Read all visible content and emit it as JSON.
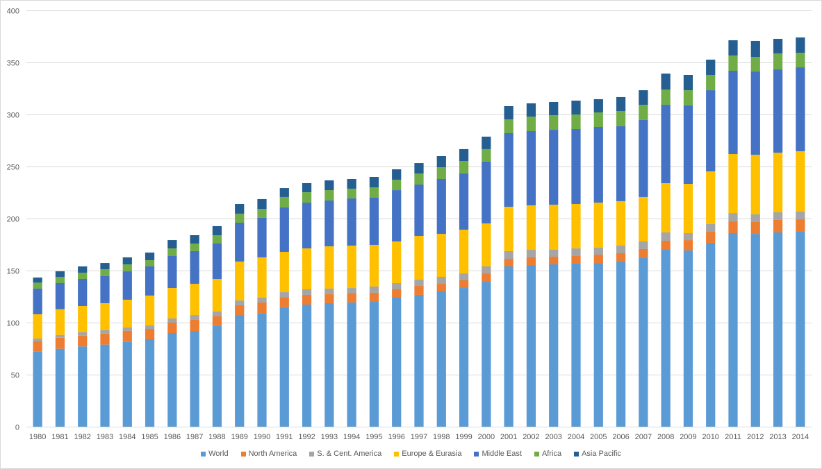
{
  "chart_data": {
    "type": "bar",
    "stacked": true,
    "title": "",
    "xlabel": "",
    "ylabel": "",
    "ylim": [
      0,
      400
    ],
    "yticks": [
      0,
      50,
      100,
      150,
      200,
      250,
      300,
      350,
      400
    ],
    "grid": true,
    "legend_position": "bottom",
    "categories": [
      "1980",
      "1981",
      "1982",
      "1983",
      "1984",
      "1985",
      "1986",
      "1987",
      "1988",
      "1989",
      "1990",
      "1991",
      "1992",
      "1993",
      "1994",
      "1995",
      "1996",
      "1997",
      "1998",
      "1999",
      "2000",
      "2001",
      "2002",
      "2003",
      "2004",
      "2005",
      "2006",
      "2007",
      "2008",
      "2009",
      "2010",
      "2011",
      "2012",
      "2013",
      "2014"
    ],
    "series": [
      {
        "name": "World",
        "color": "#5B9BD5",
        "values": [
          72.2,
          74.9,
          77.1,
          78.9,
          81.5,
          84,
          90,
          92,
          96.7,
          107.3,
          109.1,
          114.9,
          117.3,
          118.7,
          119.3,
          120,
          124,
          126.7,
          130,
          133.3,
          139.3,
          154,
          155.3,
          156,
          156.7,
          157.3,
          158.7,
          162,
          170,
          169.3,
          176.7,
          186,
          185.3,
          186.7,
          187.3
        ]
      },
      {
        "name": "North America",
        "color": "#ED7D31",
        "values": [
          9.8,
          10.6,
          10.4,
          10.6,
          10.7,
          10,
          10,
          10.7,
          9.3,
          9.4,
          10.2,
          9.1,
          9.4,
          8.6,
          8.7,
          8.7,
          8,
          8.6,
          7.3,
          7.4,
          8,
          7.3,
          7.4,
          7.3,
          7.3,
          8,
          8,
          8.7,
          8.7,
          10,
          10.6,
          11.3,
          11.4,
          12,
          12
        ]
      },
      {
        "name": "S. & Cent. America",
        "color": "#A5A5A5",
        "values": [
          2.7,
          2.7,
          3.4,
          3.2,
          3.1,
          3.3,
          4,
          4.6,
          4.7,
          4.6,
          4.7,
          5.3,
          5.3,
          5.4,
          5.3,
          6,
          6,
          6,
          6.7,
          6.6,
          6.7,
          7.4,
          7.3,
          6.7,
          7.3,
          6.7,
          7.3,
          7.3,
          8,
          6.7,
          7.4,
          8,
          7.3,
          7.3,
          7.4
        ]
      },
      {
        "name": "Europe & Eurasia",
        "color": "#FFC000",
        "values": [
          23.3,
          24.7,
          25.1,
          26,
          26.7,
          28.7,
          29.3,
          30,
          31.3,
          37.4,
          38.7,
          38.7,
          39.3,
          40.6,
          40.7,
          40,
          40,
          42,
          41.3,
          42,
          41.3,
          42.6,
          42.7,
          43.3,
          42.7,
          43.3,
          42.7,
          42.7,
          47.3,
          47.3,
          50.6,
          56.7,
          57.3,
          57.3,
          58
        ]
      },
      {
        "name": "Middle East",
        "color": "#4472C4",
        "values": [
          24.7,
          25.1,
          26,
          26,
          27.3,
          28,
          30.7,
          31.4,
          34,
          37.3,
          38,
          42.7,
          44,
          44,
          45.3,
          45.3,
          49.3,
          49.4,
          52.7,
          54,
          59.4,
          70.7,
          71.3,
          72,
          72,
          72.7,
          72,
          74,
          75.3,
          75.4,
          78,
          80,
          80,
          80,
          80.6
        ]
      },
      {
        "name": "Africa",
        "color": "#70AD47",
        "values": [
          5.7,
          5.8,
          6,
          6.6,
          6.7,
          6,
          7.3,
          7.3,
          8,
          8.7,
          8.6,
          10,
          10,
          10,
          9.4,
          10,
          10,
          10.6,
          11.3,
          12,
          12,
          13.3,
          14,
          14,
          14,
          14,
          14.6,
          14.6,
          14.7,
          14.6,
          14.7,
          14.7,
          14,
          15.4,
          14
        ]
      },
      {
        "name": "Asia Pacific",
        "color": "#255E91",
        "values": [
          4.9,
          5.5,
          6,
          6,
          6.7,
          7.3,
          8,
          8,
          8.7,
          9.3,
          9.4,
          8.6,
          8.7,
          9.4,
          9.3,
          10,
          10,
          10,
          10.7,
          11.4,
          12,
          12.7,
          12.7,
          12.7,
          13.3,
          12.7,
          13.4,
          14,
          15.3,
          14.7,
          14.7,
          14.6,
          15.4,
          14,
          14.7
        ]
      }
    ]
  },
  "style": {
    "grid_color": "#d9d9d9",
    "axis_text_color": "#595959"
  }
}
